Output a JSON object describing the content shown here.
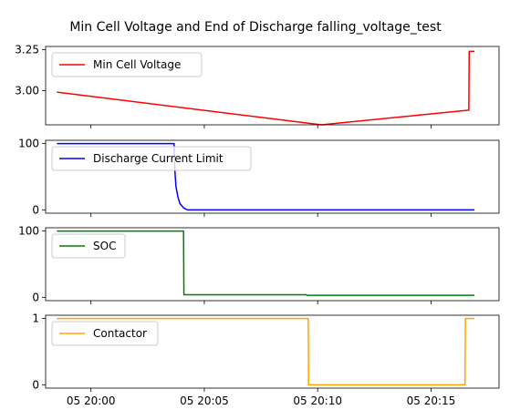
{
  "chart_data": {
    "type": "line",
    "title": "Min Cell Voltage and End of Discharge falling_voltage_test",
    "x_axis": {
      "label": "",
      "range": [
        "05 19:58:00",
        "05 20:18:00"
      ],
      "ticks": [
        {
          "value": "05 20:00:00",
          "label": "05 20:00"
        },
        {
          "value": "05 20:05:00",
          "label": "05 20:05"
        },
        {
          "value": "05 20:10:00",
          "label": "05 20:10"
        },
        {
          "value": "05 20:15:00",
          "label": "05 20:15"
        }
      ]
    },
    "grid": false,
    "legend_placement": "upper left",
    "subplots": [
      {
        "name": "Min Cell Voltage",
        "color": "#ff0000",
        "ylim": [
          2.79,
          3.27
        ],
        "yticks": [
          {
            "value": 3.0,
            "label": "3.00"
          },
          {
            "value": 3.25,
            "label": "3.25"
          }
        ],
        "points": [
          [
            "05 19:58:30",
            2.99
          ],
          [
            "05 20:10:10",
            2.79
          ],
          [
            "05 20:16:40",
            2.88
          ],
          [
            "05 20:16:41",
            3.24
          ],
          [
            "05 20:16:55",
            3.24
          ]
        ]
      },
      {
        "name": "Discharge Current Limit",
        "color": "#0000ff",
        "ylim": [
          -5,
          105
        ],
        "yticks": [
          {
            "value": 0,
            "label": "0"
          },
          {
            "value": 100,
            "label": "100"
          }
        ],
        "points": [
          [
            "05 19:58:30",
            100
          ],
          [
            "05 20:03:40",
            100
          ],
          [
            "05 20:03:42",
            60
          ],
          [
            "05 20:03:45",
            35
          ],
          [
            "05 20:03:50",
            20
          ],
          [
            "05 20:03:55",
            10
          ],
          [
            "05 20:04:05",
            3
          ],
          [
            "05 20:04:15",
            0
          ],
          [
            "05 20:16:55",
            0
          ]
        ]
      },
      {
        "name": "SOC",
        "color": "#008000",
        "ylim": [
          -5,
          105
        ],
        "yticks": [
          {
            "value": 0,
            "label": "0"
          },
          {
            "value": 100,
            "label": "100"
          }
        ],
        "points": [
          [
            "05 19:58:30",
            100
          ],
          [
            "05 20:04:05",
            100
          ],
          [
            "05 20:04:06",
            4
          ],
          [
            "05 20:09:30",
            4
          ],
          [
            "05 20:09:31",
            3
          ],
          [
            "05 20:16:55",
            3
          ]
        ]
      },
      {
        "name": "Contactor",
        "color": "#ffa500",
        "ylim": [
          -0.05,
          1.05
        ],
        "yticks": [
          {
            "value": 0,
            "label": "0"
          },
          {
            "value": 1,
            "label": "1"
          }
        ],
        "points": [
          [
            "05 19:58:30",
            1
          ],
          [
            "05 20:09:35",
            1
          ],
          [
            "05 20:09:36",
            0
          ],
          [
            "05 20:16:30",
            0
          ],
          [
            "05 20:16:31",
            1
          ],
          [
            "05 20:16:55",
            1
          ]
        ]
      }
    ]
  }
}
